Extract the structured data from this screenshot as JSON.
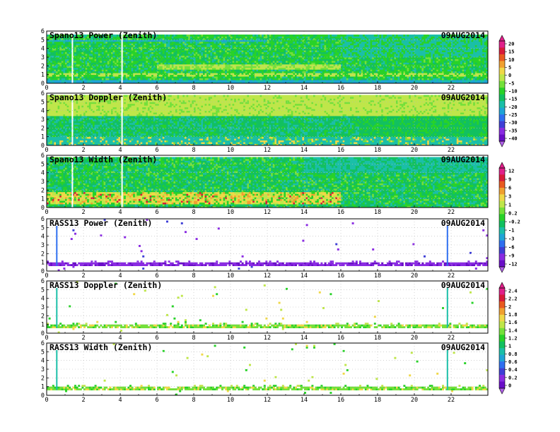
{
  "chart_data": [
    {
      "type": "heatmap",
      "title": "Spano13 Power (Zenith)",
      "date": "09AUG2014",
      "x_ticks": [
        "0",
        "2",
        "4",
        "6",
        "8",
        "10",
        "12",
        "14",
        "16",
        "18",
        "20",
        "22"
      ],
      "y_ticks": [
        "0",
        "1",
        "2",
        "3",
        "4",
        "5",
        "6"
      ],
      "xlim": [
        0,
        24
      ],
      "ylim": [
        0,
        6
      ],
      "colorbar_ticks": [
        "20",
        "15",
        "10",
        "5",
        "0",
        "-5",
        "-10",
        "-15",
        "-20",
        "-25",
        "-30",
        "-35",
        "-40"
      ],
      "colorbar_range": [
        -43,
        22
      ],
      "grid": true
    },
    {
      "type": "heatmap",
      "title": "Spano13 Doppler (Zenith)",
      "date": "09AUG2014",
      "x_ticks": [
        "0",
        "2",
        "4",
        "6",
        "8",
        "10",
        "12",
        "14",
        "16",
        "18",
        "20",
        "22"
      ],
      "y_ticks": [
        "0",
        "1",
        "2",
        "3",
        "4",
        "5",
        "6"
      ],
      "xlim": [
        0,
        24
      ],
      "ylim": [
        0,
        6
      ],
      "grid": true
    },
    {
      "type": "heatmap",
      "title": "Spano13 Width (Zenith)",
      "date": "09AUG2014",
      "x_ticks": [
        "0",
        "2",
        "4",
        "6",
        "8",
        "10",
        "12",
        "14",
        "16",
        "18",
        "20",
        "22"
      ],
      "y_ticks": [
        "0",
        "1",
        "2",
        "3",
        "4",
        "5",
        "6"
      ],
      "xlim": [
        0,
        24
      ],
      "ylim": [
        0,
        6
      ],
      "colorbar_ticks": [
        "12",
        "9",
        "6",
        "3",
        "1",
        "0.2",
        "-0.2",
        "-1",
        "-3",
        "-6",
        "-9",
        "-12"
      ],
      "grid": true
    },
    {
      "type": "heatmap",
      "title": "RASS13 Power (Zenith)",
      "date": "09AUG2014",
      "x_ticks": [
        "0",
        "2",
        "4",
        "6",
        "8",
        "10",
        "12",
        "14",
        "16",
        "18",
        "20",
        "22"
      ],
      "y_ticks": [
        "0",
        "1",
        "2",
        "3",
        "4",
        "5",
        "6"
      ],
      "xlim": [
        0,
        24
      ],
      "ylim": [
        0,
        6
      ],
      "grid": true
    },
    {
      "type": "heatmap",
      "title": "RASS13 Doppler (Zenith)",
      "date": "09AUG2014",
      "x_ticks": [
        "0",
        "2",
        "4",
        "6",
        "8",
        "10",
        "12",
        "14",
        "16",
        "18",
        "20",
        "22"
      ],
      "y_ticks": [
        "0",
        "1",
        "2",
        "3",
        "4",
        "5",
        "6"
      ],
      "xlim": [
        0,
        24
      ],
      "ylim": [
        0,
        6
      ],
      "colorbar_ticks": [
        "2.4",
        "2.2",
        "2",
        "1.8",
        "1.6",
        "1.4",
        "1.2",
        "1",
        "0.8",
        "0.6",
        "0.4",
        "0.2",
        "0"
      ],
      "grid": true
    },
    {
      "type": "heatmap",
      "title": "RASS13 Width (Zenith)",
      "date": "09AUG2014",
      "x_ticks": [
        "0",
        "2",
        "4",
        "6",
        "8",
        "10",
        "12",
        "14",
        "16",
        "18",
        "20",
        "22"
      ],
      "y_ticks": [
        "0",
        "1",
        "2",
        "3",
        "4",
        "5",
        "6"
      ],
      "xlim": [
        0,
        24
      ],
      "ylim": [
        0,
        6
      ],
      "grid": true
    }
  ],
  "colors": {
    "palette": [
      "#6a0ec8",
      "#8a2be2",
      "#3f3fd6",
      "#2f6ff0",
      "#1fa4d6",
      "#1bbfa8",
      "#12c060",
      "#28d228",
      "#74e03a",
      "#bfe64a",
      "#f0d848",
      "#f0a030",
      "#e85a20",
      "#d81a3a",
      "#e0208a"
    ],
    "colorbar_cap_top": "#e0208a",
    "colorbar_cap_bottom": "#b060e8"
  }
}
